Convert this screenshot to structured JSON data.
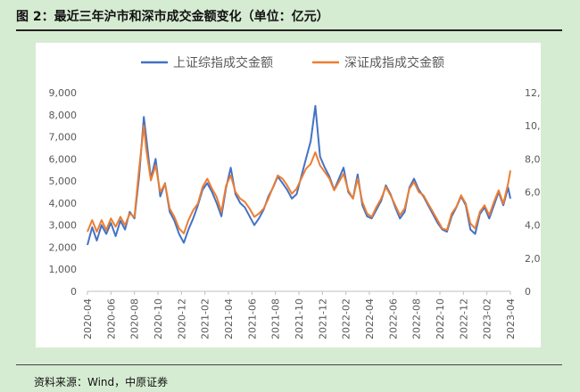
{
  "header": {
    "title": "图 2：最近三年沪市和深市成交金额变化（单位：亿元）"
  },
  "footer": {
    "source": "资料来源：Wind，中原证券"
  },
  "chart_data": {
    "type": "line",
    "title": "",
    "xlabel": "",
    "ylabel": "",
    "legend_position": "top",
    "grid": false,
    "x_ticks": [
      "2020-04",
      "2020-06",
      "2020-08",
      "2020-10",
      "2020-12",
      "2021-02",
      "2021-04",
      "2021-06",
      "2021-08",
      "2021-10",
      "2021-12",
      "2022-02",
      "2022-04",
      "2022-06",
      "2022-08",
      "2022-10",
      "2022-12",
      "2023-02",
      "2023-04"
    ],
    "ylim_left": [
      0,
      9000
    ],
    "ylim_right": [
      0,
      12000
    ],
    "yticks_left": [
      "0",
      "1,000",
      "2,000",
      "3,000",
      "4,000",
      "5,000",
      "6,000",
      "7,000",
      "8,000",
      "9,000"
    ],
    "yticks_right": [
      "0",
      "2,000",
      "4,000",
      "6,000",
      "8,000",
      "10,000",
      "12,000"
    ],
    "series": [
      {
        "name": "上证综指成交金额",
        "axis": "left",
        "color": "#4472c4",
        "x": [
          0,
          0.2,
          0.4,
          0.6,
          0.8,
          1.0,
          1.2,
          1.4,
          1.6,
          1.8,
          2.0,
          2.2,
          2.4,
          2.5,
          2.7,
          2.9,
          3.1,
          3.3,
          3.5,
          3.7,
          3.9,
          4.1,
          4.3,
          4.5,
          4.7,
          4.9,
          5.1,
          5.3,
          5.5,
          5.7,
          5.9,
          6.1,
          6.3,
          6.5,
          6.7,
          6.9,
          7.1,
          7.3,
          7.5,
          7.7,
          7.9,
          8.1,
          8.3,
          8.5,
          8.7,
          8.9,
          9.1,
          9.3,
          9.5,
          9.7,
          9.9,
          10.1,
          10.3,
          10.5,
          10.7,
          10.9,
          11.1,
          11.3,
          11.5,
          11.7,
          11.9,
          12.1,
          12.3,
          12.5,
          12.7,
          12.9,
          13.1,
          13.3,
          13.5,
          13.7,
          13.9,
          14.1,
          14.3,
          14.5,
          14.7,
          14.9,
          15.1,
          15.3,
          15.5,
          15.7,
          15.9,
          16.1,
          16.3,
          16.5,
          16.7,
          16.9,
          17.1,
          17.3,
          17.5,
          17.7,
          17.9,
          18.0
        ],
        "values": [
          2100,
          2900,
          2300,
          3000,
          2600,
          3100,
          2500,
          3200,
          2800,
          3600,
          3300,
          5200,
          7900,
          7000,
          5100,
          6000,
          4300,
          4900,
          3600,
          3200,
          2600,
          2200,
          2800,
          3300,
          3900,
          4600,
          4900,
          4500,
          4000,
          3400,
          4700,
          5600,
          4400,
          4000,
          3800,
          3400,
          3000,
          3300,
          3700,
          4300,
          4700,
          5200,
          4900,
          4600,
          4200,
          4400,
          5200,
          6000,
          6800,
          8400,
          6100,
          5600,
          5200,
          4600,
          5100,
          5600,
          4500,
          4200,
          5300,
          3900,
          3400,
          3300,
          3700,
          4100,
          4800,
          4400,
          3800,
          3300,
          3600,
          4700,
          5100,
          4600,
          4300,
          3900,
          3500,
          3100,
          2800,
          2700,
          3400,
          3800,
          4300,
          3900,
          2800,
          2600,
          3500,
          3800,
          3300,
          3900,
          4500,
          3900,
          4700,
          4200
        ]
      },
      {
        "name": "深证成指成交金额",
        "axis": "right",
        "color": "#ed7d31",
        "x": [
          0,
          0.2,
          0.4,
          0.6,
          0.8,
          1.0,
          1.2,
          1.4,
          1.6,
          1.8,
          2.0,
          2.2,
          2.4,
          2.5,
          2.7,
          2.9,
          3.1,
          3.3,
          3.5,
          3.7,
          3.9,
          4.1,
          4.3,
          4.5,
          4.7,
          4.9,
          5.1,
          5.3,
          5.5,
          5.7,
          5.9,
          6.1,
          6.3,
          6.5,
          6.7,
          6.9,
          7.1,
          7.3,
          7.5,
          7.7,
          7.9,
          8.1,
          8.3,
          8.5,
          8.7,
          8.9,
          9.1,
          9.3,
          9.5,
          9.7,
          9.9,
          10.1,
          10.3,
          10.5,
          10.7,
          10.9,
          11.1,
          11.3,
          11.5,
          11.7,
          11.9,
          12.1,
          12.3,
          12.5,
          12.7,
          12.9,
          13.1,
          13.3,
          13.5,
          13.7,
          13.9,
          14.1,
          14.3,
          14.5,
          14.7,
          14.9,
          15.1,
          15.3,
          15.5,
          15.7,
          15.9,
          16.1,
          16.3,
          16.5,
          16.7,
          16.9,
          17.1,
          17.3,
          17.5,
          17.7,
          17.9,
          18.0
        ],
        "values": [
          3600,
          4300,
          3600,
          4300,
          3700,
          4400,
          3900,
          4500,
          4000,
          4700,
          4500,
          7400,
          10000,
          8600,
          6700,
          7600,
          6000,
          6500,
          5000,
          4500,
          3800,
          3500,
          4300,
          4900,
          5300,
          6300,
          6800,
          6200,
          5700,
          4800,
          6400,
          7000,
          6000,
          5600,
          5400,
          5000,
          4500,
          4700,
          5000,
          5600,
          6300,
          7000,
          6800,
          6400,
          5900,
          6200,
          6800,
          7400,
          7700,
          8400,
          7600,
          7200,
          6800,
          6100,
          6600,
          7100,
          6100,
          5600,
          6800,
          5400,
          4700,
          4500,
          5100,
          5600,
          6300,
          5800,
          5200,
          4600,
          5000,
          6200,
          6600,
          6000,
          5800,
          5300,
          4800,
          4300,
          3800,
          3700,
          4700,
          5100,
          5800,
          5300,
          4100,
          3800,
          4800,
          5200,
          4600,
          5400,
          6100,
          5300,
          6500,
          7300
        ]
      }
    ]
  }
}
